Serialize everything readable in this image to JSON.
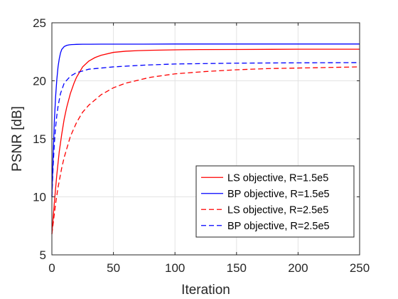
{
  "chart_data": {
    "type": "line",
    "title": "",
    "xlabel": "Iteration",
    "ylabel": "PSNR [dB]",
    "xlim": [
      0,
      250
    ],
    "ylim": [
      5,
      25
    ],
    "xticks": [
      0,
      50,
      100,
      150,
      200,
      250
    ],
    "yticks": [
      5,
      10,
      15,
      20,
      25
    ],
    "grid": true,
    "legend_position": "bottom-right",
    "series": [
      {
        "name": "LS objective, R=1.5e5",
        "color": "#ff0000",
        "dash": "solid",
        "x": [
          0,
          2,
          4,
          6,
          8,
          10,
          12,
          15,
          18,
          20,
          25,
          30,
          35,
          40,
          50,
          60,
          70,
          80,
          100,
          120,
          150,
          200,
          250
        ],
        "y": [
          6.8,
          9.5,
          11.9,
          13.9,
          15.4,
          16.7,
          17.7,
          18.9,
          19.8,
          20.3,
          21.2,
          21.7,
          22.0,
          22.2,
          22.45,
          22.55,
          22.6,
          22.63,
          22.67,
          22.69,
          22.7,
          22.72,
          22.72
        ]
      },
      {
        "name": "BP objective, R=1.5e5",
        "color": "#0000ff",
        "dash": "solid",
        "x": [
          0,
          1,
          2,
          3,
          4,
          5,
          6,
          7,
          8,
          10,
          12,
          14,
          16,
          18,
          20,
          25,
          30,
          40,
          50,
          75,
          100,
          150,
          200,
          250
        ],
        "y": [
          10.0,
          13.6,
          16.5,
          18.6,
          20.1,
          21.2,
          21.9,
          22.4,
          22.7,
          22.95,
          23.05,
          23.1,
          23.12,
          23.13,
          23.14,
          23.15,
          23.15,
          23.16,
          23.16,
          23.16,
          23.17,
          23.17,
          23.17,
          23.17
        ]
      },
      {
        "name": "LS objective, R=2.5e5",
        "color": "#ff0000",
        "dash": "dashed",
        "x": [
          0,
          3,
          5,
          8,
          10,
          15,
          20,
          25,
          30,
          40,
          50,
          60,
          80,
          100,
          125,
          150,
          175,
          200,
          225,
          250
        ],
        "y": [
          6.8,
          9.4,
          10.8,
          12.5,
          13.4,
          15.2,
          16.4,
          17.3,
          17.9,
          18.8,
          19.4,
          19.8,
          20.3,
          20.6,
          20.8,
          20.95,
          21.05,
          21.1,
          21.15,
          21.2
        ]
      },
      {
        "name": "BP objective, R=2.5e5",
        "color": "#0000ff",
        "dash": "dashed",
        "x": [
          0,
          1,
          2,
          3,
          4,
          5,
          7,
          10,
          15,
          20,
          30,
          40,
          50,
          75,
          100,
          150,
          200,
          250
        ],
        "y": [
          10.0,
          12.6,
          14.6,
          16.0,
          17.0,
          17.8,
          18.9,
          19.8,
          20.4,
          20.7,
          21.0,
          21.1,
          21.2,
          21.35,
          21.45,
          21.52,
          21.55,
          21.57
        ]
      }
    ]
  }
}
